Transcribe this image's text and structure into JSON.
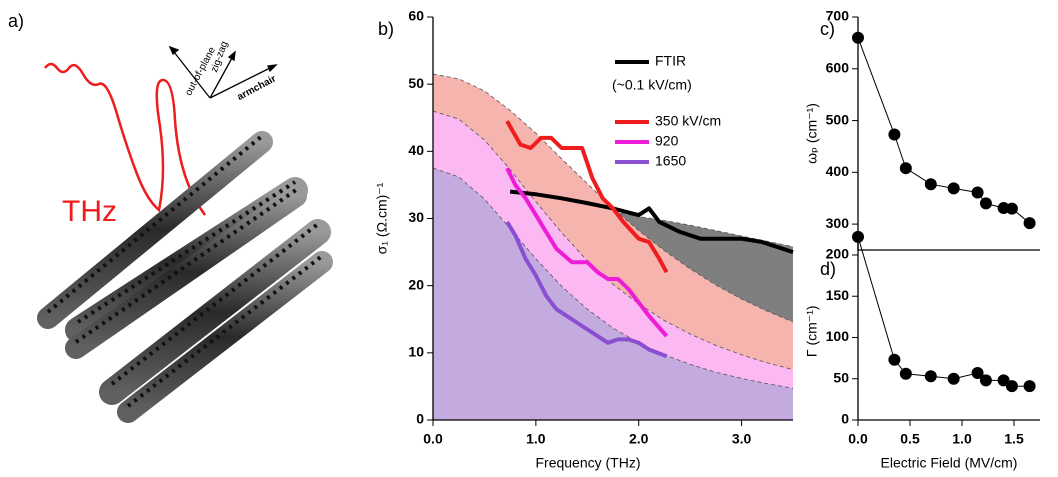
{
  "figure": {
    "panel_label": "a)",
    "wave_label": "THz",
    "axis_labels": [
      "out-of-plane",
      "zig-zag",
      "armchair"
    ]
  },
  "chart_data": [
    {
      "type": "line",
      "panel_label": "b)",
      "x_label": "Frequency (THz)",
      "y_label": "σ₁ (Ω.cm)⁻¹",
      "xlim": [
        0,
        3.5
      ],
      "ylim": [
        0,
        60
      ],
      "xticks": [
        {
          "value": 0,
          "label": "0.0"
        },
        {
          "value": 1,
          "label": "1.0"
        },
        {
          "value": 2,
          "label": "2.0"
        },
        {
          "value": 3,
          "label": "3.0"
        }
      ],
      "yticks": [
        0,
        10,
        20,
        30,
        40,
        50,
        60
      ],
      "area_x": [
        0,
        0.25,
        0.5,
        0.75,
        1,
        1.25,
        1.5,
        1.75,
        2,
        2.25,
        2.5,
        2.75,
        3,
        3.25,
        3.5
      ],
      "areas": [
        {
          "color": "#7f7f7f",
          "values": [
            33.2,
            33.2,
            33.0,
            32.8,
            32.4,
            32.0,
            31.5,
            31.0,
            30.3,
            29.7,
            29.0,
            28.2,
            27.4,
            26.6,
            25.8
          ]
        },
        {
          "color": "#f6b4ae",
          "values": [
            51.5,
            50.8,
            49.0,
            46.1,
            42.7,
            38.9,
            35.2,
            31.5,
            28.2,
            25.2,
            22.5,
            20.1,
            18.0,
            16.2,
            14.6
          ]
        },
        {
          "color": "#fbb8f2",
          "values": [
            46,
            44.8,
            41.7,
            37.3,
            32.5,
            27.9,
            23.7,
            20.2,
            17.3,
            14.8,
            12.8,
            11.1,
            9.7,
            8.5,
            7.5
          ]
        },
        {
          "color": "#c4abdf",
          "values": [
            37.5,
            36.2,
            32.9,
            28.5,
            24.0,
            19.9,
            16.5,
            13.7,
            11.5,
            9.7,
            8.3,
            7.1,
            6.2,
            5.4,
            4.7
          ]
        }
      ],
      "series": [
        {
          "name": "FTIR",
          "note": "(~0.1 kV/cm)",
          "color": "#000000",
          "x": [
            0.75,
            1.0,
            1.25,
            1.5,
            1.75,
            2.0,
            2.1,
            2.2,
            2.4,
            2.6,
            2.8,
            3.0,
            3.2,
            3.5
          ],
          "values": [
            34,
            33.6,
            33,
            32.3,
            31.5,
            30.5,
            31.5,
            29.5,
            28,
            27,
            27,
            27,
            26.5,
            25
          ]
        },
        {
          "name": "350 kV/cm",
          "color": "#ee1c1c",
          "x": [
            0.72,
            0.85,
            0.95,
            1.05,
            1.15,
            1.25,
            1.35,
            1.45,
            1.55,
            1.65,
            1.75,
            1.85,
            2.0,
            2.1,
            2.2,
            2.27
          ],
          "values": [
            44.5,
            41,
            40.5,
            42,
            42,
            40.5,
            40.5,
            40.5,
            36,
            33,
            31.5,
            29.5,
            27,
            26.5,
            24,
            22
          ]
        },
        {
          "name": "920",
          "color": "#ee1cd6",
          "x": [
            0.72,
            0.8,
            0.9,
            1.0,
            1.1,
            1.2,
            1.35,
            1.5,
            1.6,
            1.7,
            1.8,
            1.9,
            2.0,
            2.1,
            2.27
          ],
          "values": [
            37.5,
            35,
            33,
            30.5,
            28,
            25.5,
            23.5,
            23.5,
            22,
            21,
            21,
            19.5,
            17.5,
            15.5,
            12.5
          ]
        },
        {
          "name": "1650",
          "color": "#8a4fd0",
          "x": [
            0.72,
            0.8,
            0.9,
            1.0,
            1.1,
            1.2,
            1.35,
            1.45,
            1.55,
            1.7,
            1.8,
            1.9,
            2.0,
            2.1,
            2.27
          ],
          "values": [
            29.5,
            27.5,
            24,
            21.5,
            18.5,
            16.5,
            15,
            14,
            13,
            11.5,
            12,
            12,
            11.5,
            10.5,
            9.5
          ]
        }
      ]
    },
    {
      "type": "scatter",
      "panel_label": "c)",
      "y_label": "ωₚ (cm⁻¹)",
      "xlim": [
        0,
        1.75
      ],
      "ylim": [
        250,
        700
      ],
      "yticks": [
        300,
        400,
        500,
        600,
        700
      ],
      "x": [
        0,
        0.35,
        0.46,
        0.7,
        0.92,
        1.15,
        1.23,
        1.4,
        1.48,
        1.65
      ],
      "values": [
        660,
        473,
        408,
        377,
        369,
        361,
        340,
        331,
        330,
        302
      ],
      "color": "#000000"
    },
    {
      "type": "scatter",
      "panel_label": "d)",
      "x_label": "Electric Field (MV/cm)",
      "y_label": "Γ (cm⁻¹)",
      "xlim": [
        0,
        1.75
      ],
      "ylim": [
        0,
        215
      ],
      "xticks": [
        {
          "value": 0,
          "label": "0.0"
        },
        {
          "value": 0.5,
          "label": "0.5"
        },
        {
          "value": 1,
          "label": "1.0"
        },
        {
          "value": 1.5,
          "label": "1.5"
        }
      ],
      "yticks": [
        0,
        50,
        100,
        150,
        200
      ],
      "x": [
        0,
        0.35,
        0.46,
        0.7,
        0.92,
        1.15,
        1.23,
        1.4,
        1.48,
        1.65
      ],
      "values": [
        222,
        73,
        56,
        53,
        50,
        57,
        48,
        48,
        41,
        41
      ],
      "color": "#000000"
    }
  ]
}
